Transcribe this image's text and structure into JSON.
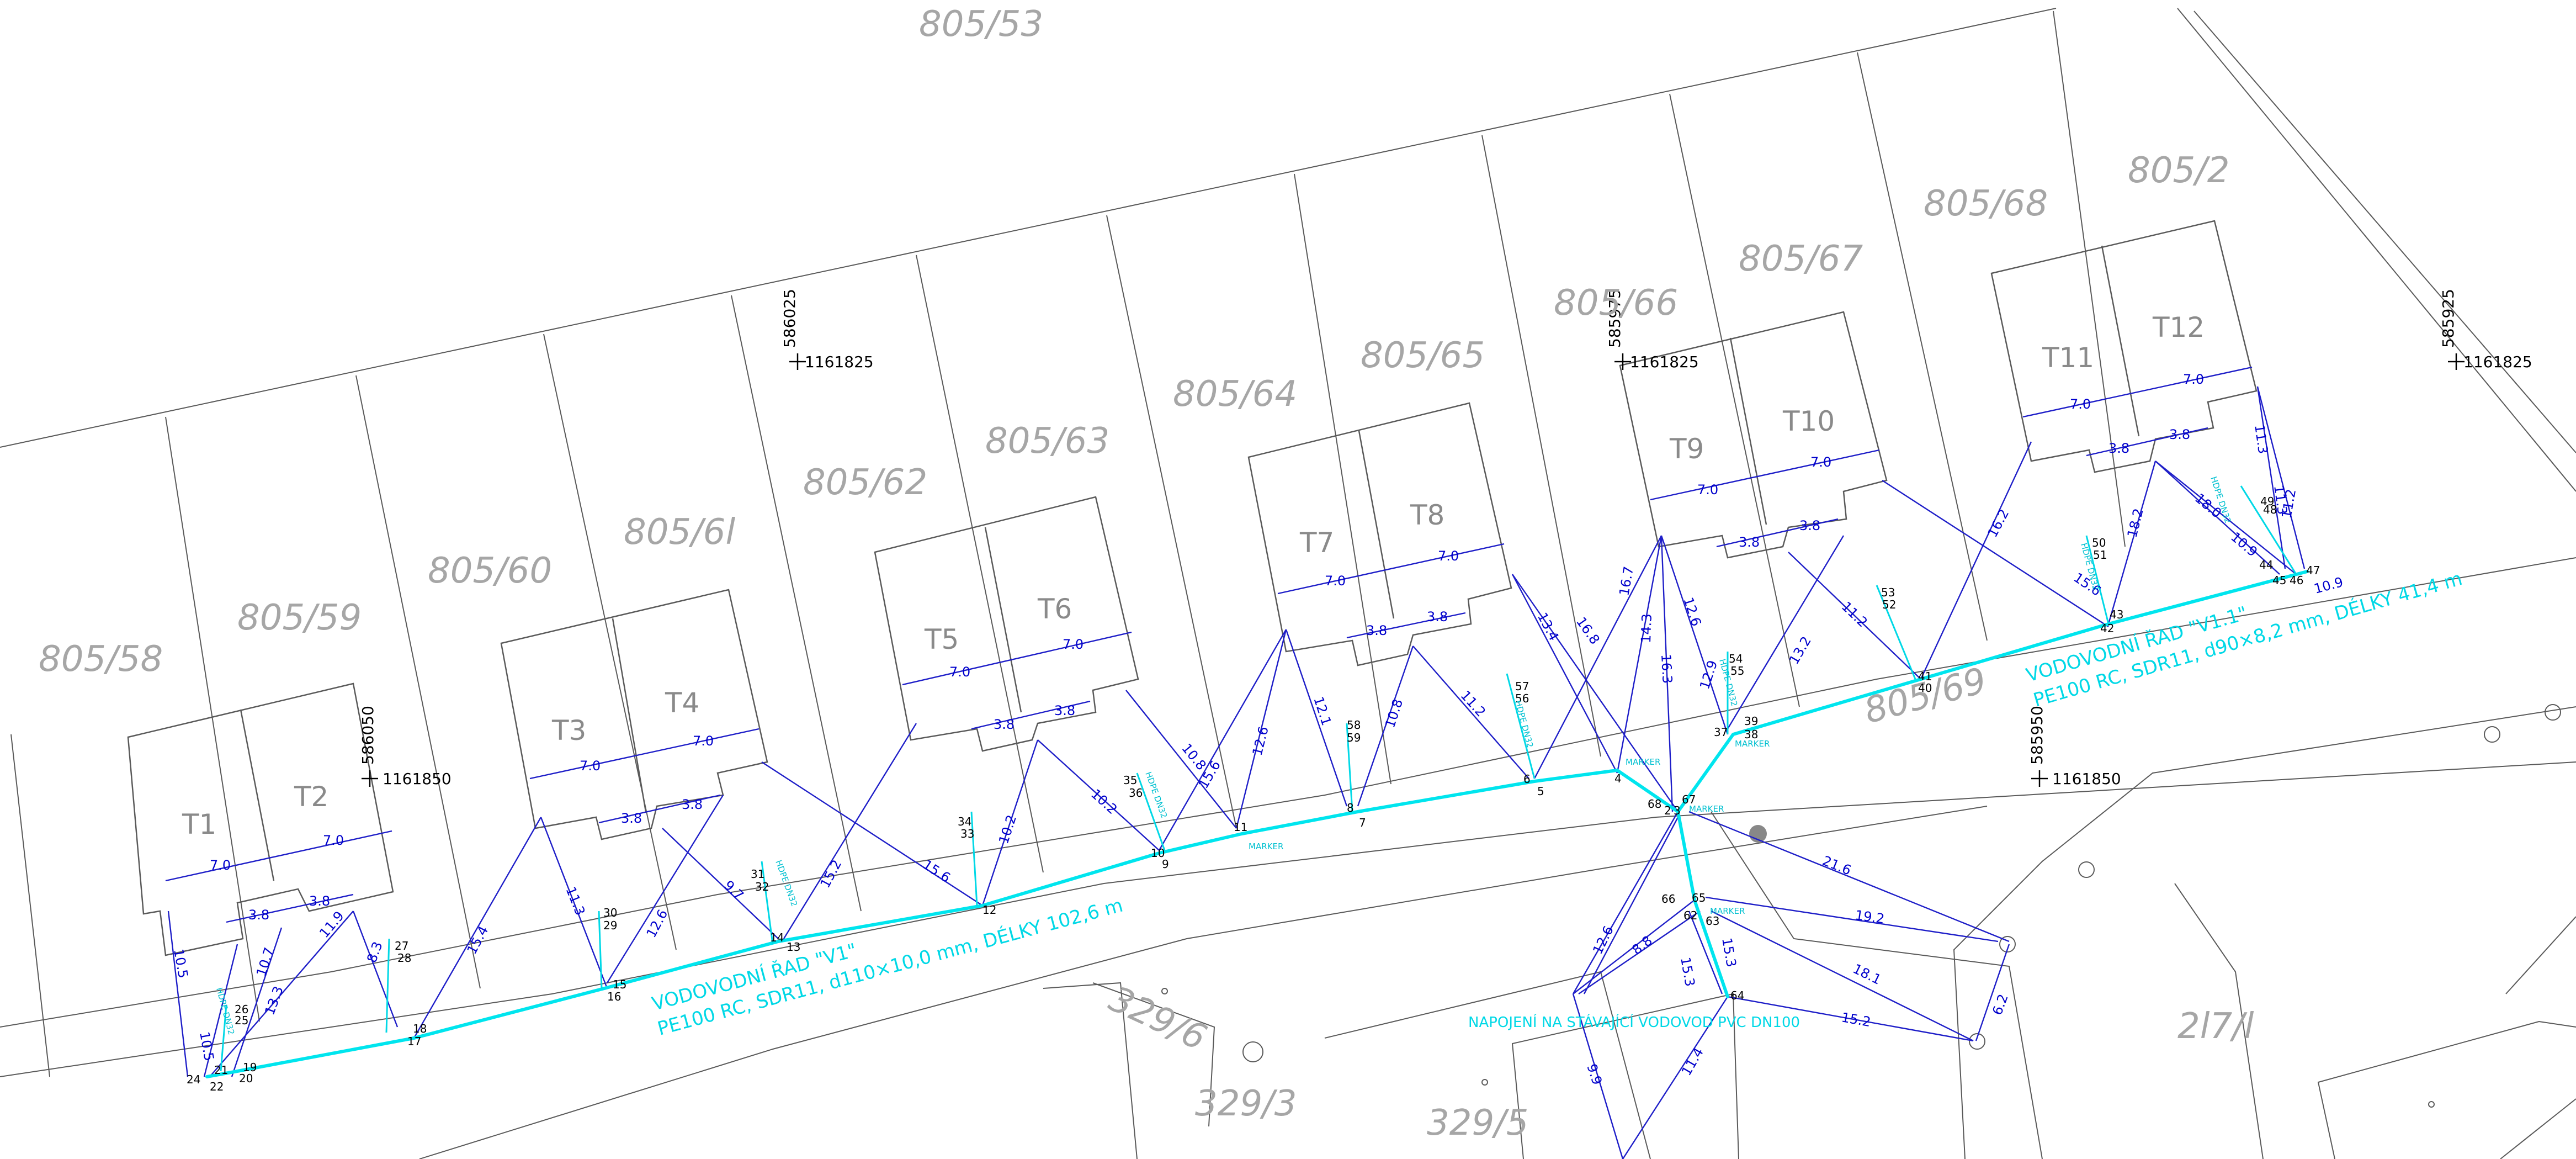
{
  "parcels": [
    {
      "id": "p805-53",
      "label": "805/53"
    },
    {
      "id": "p805-58",
      "label": "805/58"
    },
    {
      "id": "p805-59",
      "label": "805/59"
    },
    {
      "id": "p805-60",
      "label": "805/60"
    },
    {
      "id": "p805-61",
      "label": "805/6l"
    },
    {
      "id": "p805-62",
      "label": "805/62"
    },
    {
      "id": "p805-63",
      "label": "805/63"
    },
    {
      "id": "p805-64",
      "label": "805/64"
    },
    {
      "id": "p805-65",
      "label": "805/65"
    },
    {
      "id": "p805-66",
      "label": "805/66"
    },
    {
      "id": "p805-67",
      "label": "805/67"
    },
    {
      "id": "p805-68",
      "label": "805/68"
    },
    {
      "id": "p805-2",
      "label": "805/2"
    },
    {
      "id": "p805-69",
      "label": "805/69"
    },
    {
      "id": "p329-6",
      "label": "329/6"
    },
    {
      "id": "p329-3",
      "label": "329/3"
    },
    {
      "id": "p329-5",
      "label": "329/5"
    },
    {
      "id": "p217-1",
      "label": "2l7/l"
    }
  ],
  "houses": [
    "T1",
    "T2",
    "T3",
    "T4",
    "T5",
    "T6",
    "T7",
    "T8",
    "T9",
    "T10",
    "T11",
    "T12"
  ],
  "coordinates": {
    "y_586025": "586025",
    "x_1161825_a": "1161825",
    "y_585975": "585975",
    "x_1161825_b": "1161825",
    "y_585925": "585925",
    "x_1161825_c": "1161825",
    "y_586050": "586050",
    "x_1161850_a": "1161850",
    "y_585950": "585950",
    "x_1161850_b": "1161850"
  },
  "annotations": {
    "main_v1_line1": "VODOVODNÍ ŘAD \"V1\"",
    "main_v1_line2": "PE100 RC, SDR11, d110×10,0 mm, DÉLKY 102,6 m",
    "main_v11_line1": "VODOVODNÍ ŘAD \"V1.1\"",
    "main_v11_line2": "PE100 RC, SDR11, d90×8,2 mm, DÉLKY 41,4 m",
    "connection_note": "NAPOJENÍ NA STÁVAJÍCÍ VODOVOD PVC DN100",
    "marker": "MARKER",
    "house_pipe": "HDPE DN32"
  },
  "dimensions": {
    "d7_0": "7.0",
    "d3_8": "3.8",
    "d10_5": "10.5",
    "d10_7": "10.7",
    "d13_3": "13.3",
    "d11_9": "11.9",
    "d8_3": "8.3",
    "d15_4": "15.4",
    "d11_3": "11.3",
    "d12_6": "12.6",
    "d9_7": "9.7",
    "d15_2": "15.2",
    "d15_6": "15.6",
    "d10_2": "10.2",
    "d10_8": "10.8",
    "d12_1": "12.1",
    "d11_2": "11.2",
    "d13_4": "13.4",
    "d16_8": "16.8",
    "d16_7": "16.7",
    "d14_3": "14.3",
    "d16_3": "16.3",
    "d13_2": "13.2",
    "d16_2": "16.2",
    "d18_2": "18.2",
    "d18_0": "18.0",
    "d21_6": "21.6",
    "d19_2": "19.2",
    "d18_1": "18.1",
    "d6_2": "6.2",
    "d9_9": "9.9",
    "d11_4": "11.4",
    "d10_9": "10.9",
    "d8_8": "8.8",
    "d15_3": "15.3",
    "d12_9": "12.9"
  },
  "points": {
    "p2": "2",
    "p3": "3",
    "p4": "4",
    "p5": "5",
    "p6": "6",
    "p7": "7",
    "p8": "8",
    "p9": "9",
    "p10": "10",
    "p11": "11",
    "p12": "12",
    "p13": "13",
    "p14": "14",
    "p15": "15",
    "p16": "16",
    "p17": "17",
    "p18": "18",
    "p19": "19",
    "p20": "20",
    "p21": "21",
    "p22": "22",
    "p24": "24",
    "p25": "25",
    "p26": "26",
    "p27": "27",
    "p28": "28",
    "p29": "29",
    "p30": "30",
    "p31": "31",
    "p32": "32",
    "p33": "33",
    "p34": "34",
    "p35": "35",
    "p36": "36",
    "p37": "37",
    "p38": "38",
    "p39": "39",
    "p40": "40",
    "p41": "41",
    "p42": "42",
    "p43": "43",
    "p44": "44",
    "p45": "45",
    "p46": "46",
    "p47": "47",
    "p48": "48",
    "p49": "49",
    "p50": "50",
    "p51": "51",
    "p52": "52",
    "p53": "53",
    "p54": "54",
    "p55": "55",
    "p56": "56",
    "p57": "57",
    "p58": "58",
    "p59": "59",
    "p60": "60",
    "p62": "62",
    "p63": "63",
    "p64": "64",
    "p65": "65",
    "p66": "66",
    "p67": "67",
    "p68": "68"
  },
  "colors": {
    "pipe": "#00e5ee",
    "measurement": "#1e1ec8",
    "boundary": "#5a5a5a",
    "parcel_label": "#a6a6a6"
  }
}
